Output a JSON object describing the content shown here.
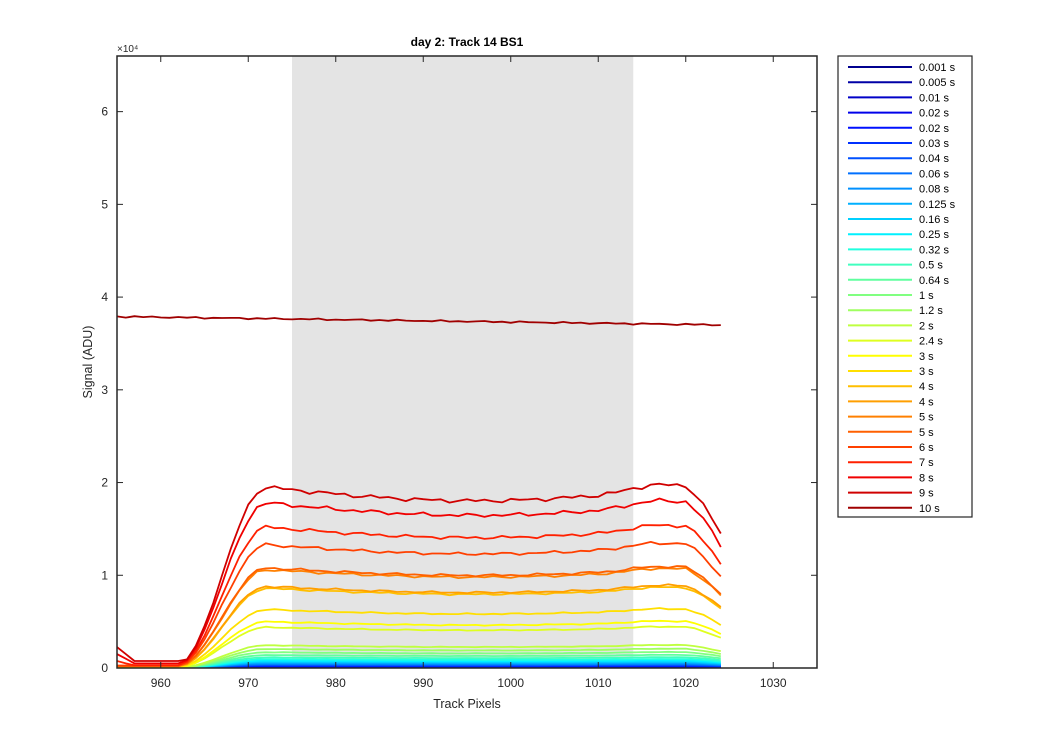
{
  "chart_data": {
    "type": "line",
    "title": "day 2: Track 14  BS1",
    "xlabel": "Track Pixels",
    "ylabel": "Signal (ADU)",
    "y_exponent_label": "×10⁴",
    "xlim": [
      955,
      1035
    ],
    "ylim": [
      0,
      66000
    ],
    "x_ticks": [
      960,
      970,
      980,
      990,
      1000,
      1010,
      1020,
      1030
    ],
    "x_tick_labels": [
      "960",
      "970",
      "980",
      "990",
      "1000",
      "1010",
      "1020",
      "1030"
    ],
    "y_ticks": [
      0,
      10000,
      20000,
      30000,
      40000,
      50000,
      60000
    ],
    "y_tick_labels": [
      "0",
      "1",
      "2",
      "3",
      "4",
      "5",
      "6"
    ],
    "grid": false,
    "legend_position": "outside-right",
    "shaded_region": {
      "x_from": 975,
      "x_to": 1014,
      "color": "#e4e4e4"
    },
    "x_range": {
      "start": 955,
      "end": 1024,
      "step": 1
    },
    "series": [
      {
        "name": "0.001 s",
        "color": "#00008f",
        "plateau": 20
      },
      {
        "name": "0.005 s",
        "color": "#0000a6",
        "plateau": 60
      },
      {
        "name": "0.01 s",
        "color": "#0000c8",
        "plateau": 110
      },
      {
        "name": "0.02 s",
        "color": "#0000ea",
        "plateau": 160
      },
      {
        "name": "0.02 s",
        "color": "#0010ff",
        "plateau": 210
      },
      {
        "name": "0.03 s",
        "color": "#0030ff",
        "plateau": 260
      },
      {
        "name": "0.04 s",
        "color": "#0050ff",
        "plateau": 330
      },
      {
        "name": "0.06 s",
        "color": "#0070ff",
        "plateau": 400
      },
      {
        "name": "0.08 s",
        "color": "#0090ff",
        "plateau": 480
      },
      {
        "name": "0.125 s",
        "color": "#00b0ff",
        "plateau": 580
      },
      {
        "name": "0.16 s",
        "color": "#00d0ff",
        "plateau": 680
      },
      {
        "name": "0.25 s",
        "color": "#00f0ff",
        "plateau": 800
      },
      {
        "name": "0.32 s",
        "color": "#20ffdf",
        "plateau": 950
      },
      {
        "name": "0.5 s",
        "color": "#40ffbf",
        "plateau": 1150
      },
      {
        "name": "0.64 s",
        "color": "#60ff9f",
        "plateau": 1400
      },
      {
        "name": "1 s",
        "color": "#80ff80",
        "plateau": 1700
      },
      {
        "name": "1.2 s",
        "color": "#9fff60",
        "plateau": 2050
      },
      {
        "name": "2 s",
        "color": "#bfff40",
        "plateau": 2450
      },
      {
        "name": "2.4 s",
        "color": "#dfff20",
        "plateau": 4400
      },
      {
        "name": "3 s",
        "color": "#ffff00",
        "plateau": 5000
      },
      {
        "name": "3 s",
        "color": "#ffdf00",
        "plateau": 6300
      },
      {
        "name": "4 s",
        "color": "#ffbf00",
        "plateau": 8600
      },
      {
        "name": "4 s",
        "color": "#ff9f00",
        "plateau": 8800
      },
      {
        "name": "5 s",
        "color": "#ff8000",
        "plateau": 10600
      },
      {
        "name": "5 s",
        "color": "#ff6000",
        "plateau": 10800
      },
      {
        "name": "6 s",
        "color": "#ff4000",
        "plateau": 13300
      },
      {
        "name": "7 s",
        "color": "#ff2000",
        "plateau": 15200
      },
      {
        "name": "8 s",
        "color": "#f00000",
        "plateau": 17800
      },
      {
        "name": "9 s",
        "color": "#d00000",
        "plateau": 19500
      },
      {
        "name": "10 s",
        "color": "#a00000",
        "saturated": true,
        "start_value": 37900,
        "end_value": 37000
      }
    ]
  }
}
